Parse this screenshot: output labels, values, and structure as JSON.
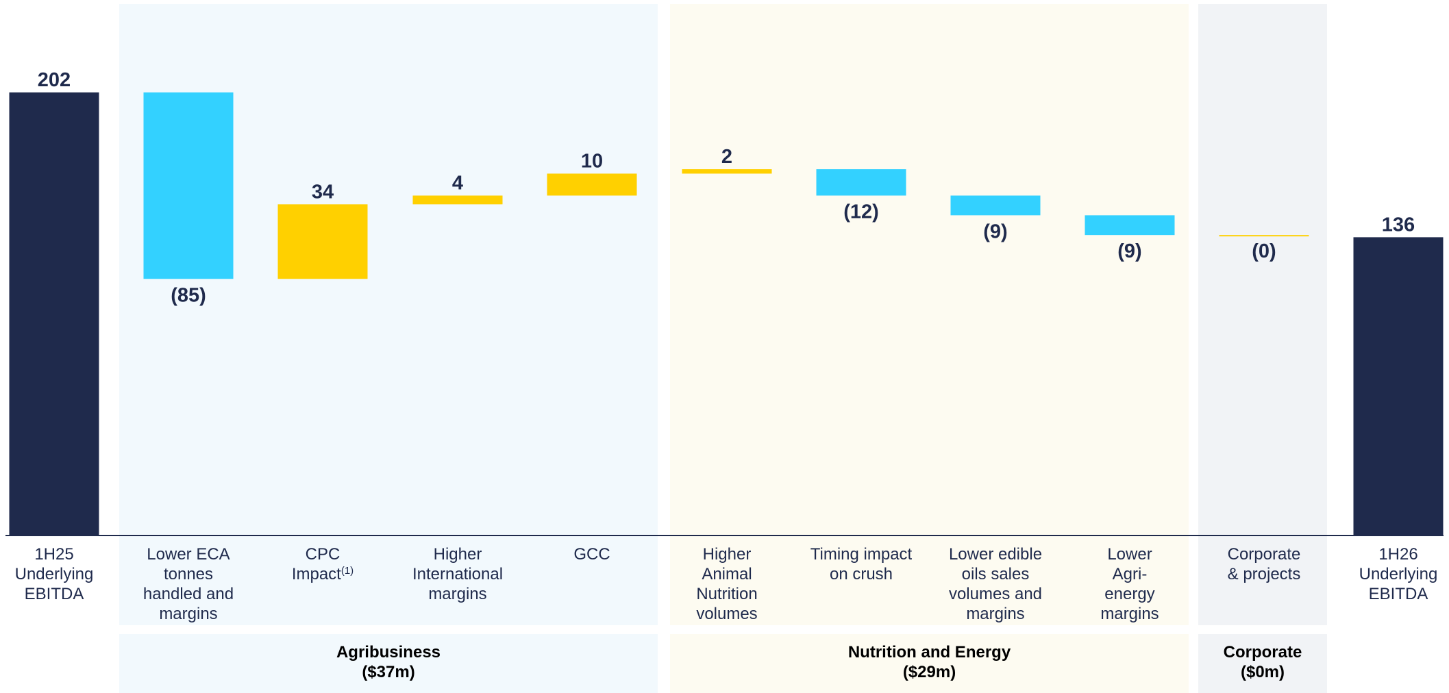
{
  "chart_data": {
    "type": "waterfall",
    "colors": {
      "total": "#1f2a4c",
      "increase": "#ffd000",
      "decrease": "#33d1ff",
      "axis": "#1f2a4c",
      "segment_agribusiness": "#f2f9fd",
      "segment_nutrition": "#fdfbf1",
      "segment_corporate": "#f1f3f6"
    },
    "ylim": [
      0,
      202
    ],
    "bars": [
      {
        "label_lines": [
          "1H25",
          "Underlying",
          "EBITDA"
        ],
        "kind": "total",
        "value": 202,
        "display": "202"
      },
      {
        "label_lines": [
          "Lower ECA",
          "tonnes",
          "handled and",
          "margins"
        ],
        "kind": "decrease",
        "value": -85,
        "display": "(85)"
      },
      {
        "label_lines": [
          "CPC",
          "Impact"
        ],
        "superscript": "(1)",
        "kind": "increase",
        "value": 34,
        "display": "34"
      },
      {
        "label_lines": [
          "Higher",
          "International",
          "margins"
        ],
        "kind": "increase",
        "value": 4,
        "display": "4"
      },
      {
        "label_lines": [
          "GCC"
        ],
        "kind": "increase",
        "value": 10,
        "display": "10"
      },
      {
        "label_lines": [
          "Higher",
          "Animal",
          "Nutrition",
          "volumes"
        ],
        "kind": "increase",
        "value": 2,
        "display": "2"
      },
      {
        "label_lines": [
          "Timing impact",
          "on crush"
        ],
        "kind": "decrease",
        "value": -12,
        "display": "(12)"
      },
      {
        "label_lines": [
          "Lower edible",
          "oils sales",
          "volumes and",
          "margins"
        ],
        "kind": "decrease",
        "value": -9,
        "display": "(9)"
      },
      {
        "label_lines": [
          "Lower",
          "Agri-",
          "energy",
          "margins"
        ],
        "kind": "decrease",
        "value": -9,
        "display": "(9)"
      },
      {
        "label_lines": [
          "Corporate",
          "& projects"
        ],
        "kind": "decrease",
        "value": 0,
        "display": "(0)"
      },
      {
        "label_lines": [
          "1H26",
          "Underlying",
          "EBITDA"
        ],
        "kind": "total",
        "value": 136,
        "display": "136"
      }
    ],
    "segments": [
      {
        "name": "Agribusiness",
        "total": "($37m)",
        "first_bar": 1,
        "last_bar": 4
      },
      {
        "name": "Nutrition and Energy",
        "total": "($29m)",
        "first_bar": 5,
        "last_bar": 8
      },
      {
        "name": "Corporate",
        "total": "($0m)",
        "first_bar": 9,
        "last_bar": 9
      }
    ]
  }
}
